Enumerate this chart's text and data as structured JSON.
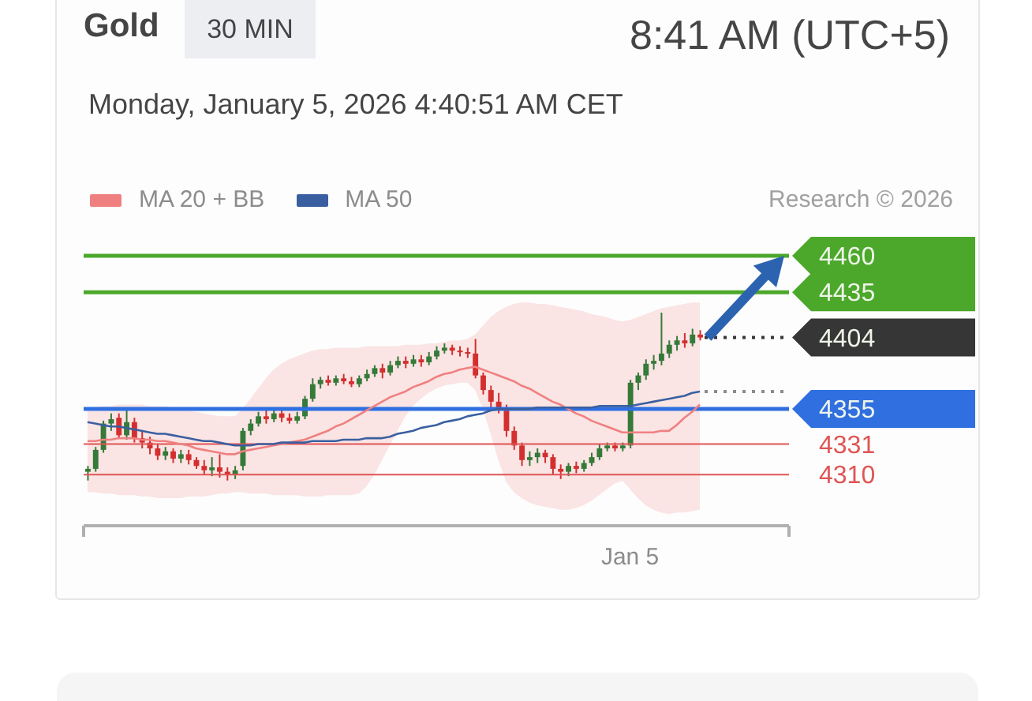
{
  "chart_data": {
    "type": "candlestick",
    "title": "Gold",
    "subtitle": "Monday, January 5, 2026 4:40:51 AM CET",
    "annotations": [
      "30 MIN",
      "8:41 AM (UTC+5)",
      "Research © 2026"
    ],
    "categories": [
      null,
      null,
      null,
      null,
      null,
      null,
      null,
      null,
      null,
      null,
      null,
      null,
      null,
      null,
      null,
      null,
      null,
      null,
      null,
      null,
      null,
      null,
      null,
      null,
      null,
      null,
      null,
      null,
      null,
      null,
      null,
      null,
      null,
      null,
      null,
      null,
      null,
      null,
      null,
      null,
      null,
      null,
      null,
      null,
      null,
      null,
      null,
      null,
      null,
      null,
      null,
      null,
      null,
      null,
      null,
      null,
      null,
      null,
      null,
      null,
      null,
      null,
      null,
      null,
      null,
      null,
      null,
      null,
      null,
      null,
      "Jan 5",
      null,
      null,
      null,
      null,
      null,
      null,
      null,
      null,
      null,
      null,
      null,
      null,
      null,
      null,
      null,
      null,
      null,
      null,
      null,
      null
    ],
    "ohlc": [
      [
        4312,
        4316,
        4306,
        4314
      ],
      [
        4314,
        4329,
        4312,
        4327
      ],
      [
        4327,
        4347,
        4325,
        4345
      ],
      [
        4345,
        4352,
        4340,
        4348
      ],
      [
        4349,
        4352,
        4335,
        4337
      ],
      [
        4337,
        4354,
        4334,
        4346
      ],
      [
        4346,
        4349,
        4332,
        4335
      ],
      [
        4335,
        4340,
        4328,
        4332
      ],
      [
        4332,
        4336,
        4324,
        4328
      ],
      [
        4328,
        4331,
        4320,
        4323
      ],
      [
        4323,
        4329,
        4320,
        4326
      ],
      [
        4326,
        4328,
        4318,
        4321
      ],
      [
        4321,
        4327,
        4318,
        4324
      ],
      [
        4324,
        4327,
        4317,
        4320
      ],
      [
        4320,
        4322,
        4314,
        4316
      ],
      [
        4316,
        4320,
        4310,
        4313
      ],
      [
        4313,
        4322,
        4309,
        4315
      ],
      [
        4315,
        4324,
        4308,
        4312
      ],
      [
        4312,
        4315,
        4306,
        4310
      ],
      [
        4310,
        4316,
        4307,
        4313
      ],
      [
        4316,
        4342,
        4313,
        4340
      ],
      [
        4340,
        4348,
        4337,
        4345
      ],
      [
        4345,
        4353,
        4343,
        4350
      ],
      [
        4350,
        4354,
        4345,
        4348
      ],
      [
        4348,
        4356,
        4346,
        4352
      ],
      [
        4352,
        4355,
        4346,
        4349
      ],
      [
        4349,
        4352,
        4345,
        4347
      ],
      [
        4347,
        4353,
        4345,
        4350
      ],
      [
        4350,
        4364,
        4348,
        4362
      ],
      [
        4362,
        4376,
        4360,
        4372
      ],
      [
        4372,
        4377,
        4369,
        4375
      ],
      [
        4375,
        4378,
        4371,
        4373
      ],
      [
        4373,
        4378,
        4371,
        4376
      ],
      [
        4376,
        4379,
        4372,
        4374
      ],
      [
        4374,
        4377,
        4370,
        4372
      ],
      [
        4372,
        4378,
        4370,
        4376
      ],
      [
        4376,
        4382,
        4374,
        4379
      ],
      [
        4379,
        4385,
        4377,
        4383
      ],
      [
        4383,
        4386,
        4376,
        4380
      ],
      [
        4380,
        4388,
        4378,
        4385
      ],
      [
        4385,
        4391,
        4383,
        4388
      ],
      [
        4388,
        4391,
        4383,
        4386
      ],
      [
        4386,
        4392,
        4384,
        4389
      ],
      [
        4389,
        4392,
        4384,
        4387
      ],
      [
        4387,
        4394,
        4385,
        4391
      ],
      [
        4391,
        4398,
        4389,
        4395
      ],
      [
        4395,
        4400,
        4393,
        4397
      ],
      [
        4397,
        4399,
        4392,
        4395
      ],
      [
        4395,
        4398,
        4391,
        4394
      ],
      [
        4394,
        4397,
        4390,
        4393
      ],
      [
        4393,
        4403,
        4376,
        4378
      ],
      [
        4378,
        4380,
        4365,
        4368
      ],
      [
        4368,
        4371,
        4356,
        4360
      ],
      [
        4360,
        4366,
        4352,
        4356
      ],
      [
        4356,
        4358,
        4336,
        4340
      ],
      [
        4340,
        4343,
        4327,
        4330
      ],
      [
        4330,
        4332,
        4316,
        4320
      ],
      [
        4320,
        4326,
        4316,
        4322
      ],
      [
        4322,
        4328,
        4318,
        4325
      ],
      [
        4325,
        4327,
        4318,
        4322
      ],
      [
        4322,
        4324,
        4310,
        4314
      ],
      [
        4314,
        4317,
        4307,
        4312
      ],
      [
        4312,
        4318,
        4309,
        4316
      ],
      [
        4316,
        4319,
        4311,
        4314
      ],
      [
        4314,
        4320,
        4312,
        4318
      ],
      [
        4318,
        4325,
        4316,
        4322
      ],
      [
        4322,
        4331,
        4320,
        4328
      ],
      [
        4328,
        4332,
        4326,
        4330
      ],
      [
        4330,
        4332,
        4326,
        4328
      ],
      [
        4328,
        4332,
        4326,
        4330
      ],
      [
        4330,
        4375,
        4328,
        4373
      ],
      [
        4373,
        4380,
        4368,
        4378
      ],
      [
        4378,
        4389,
        4375,
        4386
      ],
      [
        4386,
        4392,
        4382,
        4388
      ],
      [
        4388,
        4421,
        4385,
        4393
      ],
      [
        4393,
        4402,
        4390,
        4399
      ],
      [
        4399,
        4405,
        4395,
        4402
      ],
      [
        4402,
        4407,
        4397,
        4400
      ],
      [
        4400,
        4410,
        4398,
        4406
      ],
      [
        4406,
        4409,
        4402,
        4404
      ],
      null,
      null,
      null,
      null,
      null,
      null,
      null,
      null,
      null,
      null,
      null
    ],
    "colors": [
      "#357a38",
      "#357a38",
      "#357a38",
      "#357a38",
      "#d32f2f",
      "#357a38",
      "#d32f2f",
      "#d32f2f",
      "#d32f2f",
      "#d32f2f",
      "#357a38",
      "#d32f2f",
      "#357a38",
      "#d32f2f",
      "#d32f2f",
      "#d32f2f",
      "#357a38",
      "#d32f2f",
      "#d32f2f",
      "#357a38",
      "#357a38",
      "#357a38",
      "#357a38",
      "#d32f2f",
      "#357a38",
      "#d32f2f",
      "#d32f2f",
      "#357a38",
      "#357a38",
      "#357a38",
      "#357a38",
      "#d32f2f",
      "#357a38",
      "#d32f2f",
      "#d32f2f",
      "#357a38",
      "#357a38",
      "#357a38",
      "#d32f2f",
      "#357a38",
      "#357a38",
      "#d32f2f",
      "#357a38",
      "#d32f2f",
      "#357a38",
      "#357a38",
      "#357a38",
      "#d32f2f",
      "#d32f2f",
      "#d32f2f",
      "#d32f2f",
      "#d32f2f",
      "#d32f2f",
      "#d32f2f",
      "#d32f2f",
      "#d32f2f",
      "#d32f2f",
      "#357a38",
      "#357a38",
      "#d32f2f",
      "#d32f2f",
      "#d32f2f",
      "#357a38",
      "#d32f2f",
      "#357a38",
      "#357a38",
      "#357a38",
      "#357a38",
      "#d32f2f",
      "#357a38",
      "#357a38",
      "#357a38",
      "#357a38",
      "#357a38",
      "#357a38",
      "#357a38",
      "#357a38",
      "#d32f2f",
      "#357a38",
      "#d32f2f",
      null,
      null,
      null,
      null,
      null,
      null,
      null,
      null,
      null,
      null,
      null
    ],
    "series": [
      {
        "name": "MA 20 + BB",
        "type": "line",
        "color": "#f08080",
        "values": [
          4333,
          4333,
          4334,
          4334,
          4335,
          4335,
          4335,
          4334,
          4334,
          4333,
          4333,
          4332,
          4331,
          4330,
          4328,
          4327,
          4326,
          4325,
          4324,
          4324,
          4326,
          4327,
          4328,
          4329,
          4330,
          4331,
          4332,
          4333,
          4334,
          4336,
          4338,
          4340,
          4343,
          4345,
          4348,
          4351,
          4354,
          4357,
          4360,
          4363,
          4365,
          4367,
          4370,
          4372,
          4374,
          4377,
          4379,
          4380,
          4382,
          4383,
          4384,
          4382,
          4380,
          4378,
          4376,
          4374,
          4371,
          4369,
          4366,
          4363,
          4360,
          4358,
          4355,
          4352,
          4350,
          4347,
          4345,
          4343,
          4341,
          4339,
          4339,
          4339,
          4339,
          4339,
          4340,
          4340,
          4344,
          4349,
          4353,
          4358,
          null,
          null,
          null,
          null,
          null,
          null,
          null,
          null,
          null,
          null,
          null
        ],
        "upper": [
          4356,
          4356,
          4357,
          4357,
          4358,
          4358,
          4358,
          4358,
          4357,
          4357,
          4357,
          4356,
          4355,
          4354,
          4353,
          4352,
          4351,
          4350,
          4350,
          4350,
          4355,
          4362,
          4369,
          4376,
          4382,
          4386,
          4389,
          4391,
          4393,
          4395,
          4396,
          4396,
          4397,
          4397,
          4397,
          4397,
          4398,
          4398,
          4398,
          4398,
          4398,
          4399,
          4399,
          4399,
          4400,
          4400,
          4401,
          4402,
          4402,
          4403,
          4406,
          4412,
          4418,
          4422,
          4425,
          4427,
          4428,
          4428,
          4427,
          4427,
          4426,
          4425,
          4424,
          4423,
          4422,
          4420,
          4419,
          4418,
          4416,
          4415,
          4416,
          4418,
          4420,
          4422,
          4424,
          4425,
          4426,
          4427,
          4428,
          4428,
          null,
          null,
          null,
          null,
          null,
          null,
          null,
          null,
          null,
          null,
          null
        ],
        "lower": [
          4298,
          4298,
          4297,
          4297,
          4296,
          4296,
          4296,
          4295,
          4295,
          4294,
          4294,
          4294,
          4294,
          4295,
          4295,
          4295,
          4296,
          4297,
          4297,
          4298,
          4298,
          4297,
          4297,
          4297,
          4296,
          4296,
          4296,
          4296,
          4295,
          4295,
          4295,
          4296,
          4296,
          4296,
          4296,
          4297,
          4302,
          4310,
          4320,
          4330,
          4340,
          4350,
          4357,
          4362,
          4366,
          4369,
          4371,
          4372,
          4373,
          4373,
          4368,
          4355,
          4338,
          4320,
          4305,
          4298,
          4294,
          4291,
          4289,
          4288,
          4287,
          4286,
          4286,
          4287,
          4289,
          4292,
          4296,
          4300,
          4304,
          4306,
          4300,
          4294,
          4289,
          4286,
          4284,
          4283,
          4284,
          4284,
          4285,
          4286,
          null,
          null,
          null,
          null,
          null,
          null,
          null,
          null,
          null,
          null,
          null
        ]
      },
      {
        "name": "MA 50",
        "type": "line",
        "color": "#3a5fa0",
        "values": [
          4346,
          4345,
          4344,
          4343,
          4343,
          4342,
          4341,
          4340,
          4339,
          4338,
          4338,
          4337,
          4336,
          4335,
          4334,
          4333,
          4333,
          4332,
          4331,
          4330,
          4330,
          4330,
          4331,
          4331,
          4331,
          4332,
          4332,
          4332,
          4332,
          4333,
          4333,
          4333,
          4333,
          4334,
          4334,
          4334,
          4335,
          4335,
          4335,
          4336,
          4338,
          4339,
          4340,
          4342,
          4343,
          4344,
          4346,
          4347,
          4348,
          4350,
          4351,
          4352,
          4354,
          4355,
          4355,
          4355,
          4355,
          4355,
          4356,
          4356,
          4356,
          4356,
          4356,
          4356,
          4356,
          4356,
          4357,
          4357,
          4357,
          4357,
          4357,
          4358,
          4359,
          4360,
          4361,
          4362,
          4363,
          4364,
          4366,
          4367,
          null,
          null,
          null,
          null,
          null,
          null,
          null,
          null,
          null,
          null,
          null
        ]
      }
    ],
    "ylim": [
      4275,
      4460
    ],
    "tick_labels": "x",
    "legend": "top left",
    "ref_lines": [
      {
        "axis": "y",
        "value": 4460,
        "label": "4460",
        "color": "#4ca82a",
        "line_style": "solid"
      },
      {
        "axis": "y",
        "value": 4435,
        "label": "4435",
        "color": "#4ca82a",
        "line_style": "solid"
      },
      {
        "axis": "y",
        "value": 4404,
        "label": "4404",
        "color": "#363636",
        "line_style": "dotted"
      },
      {
        "axis": "y",
        "value": 4355,
        "label": "4355",
        "color": "#2f6fe0",
        "line_style": "solid"
      },
      {
        "axis": "y",
        "value": 4331,
        "label": "4331",
        "color": "#e05555",
        "line_style": "solid"
      },
      {
        "axis": "y",
        "value": 4310,
        "label": "4310",
        "color": "#e05555",
        "line_style": "solid"
      },
      {
        "axis": "y",
        "value": 4367,
        "label": null,
        "color": "#8c8c8c",
        "line_style": "dotted"
      }
    ]
  }
}
